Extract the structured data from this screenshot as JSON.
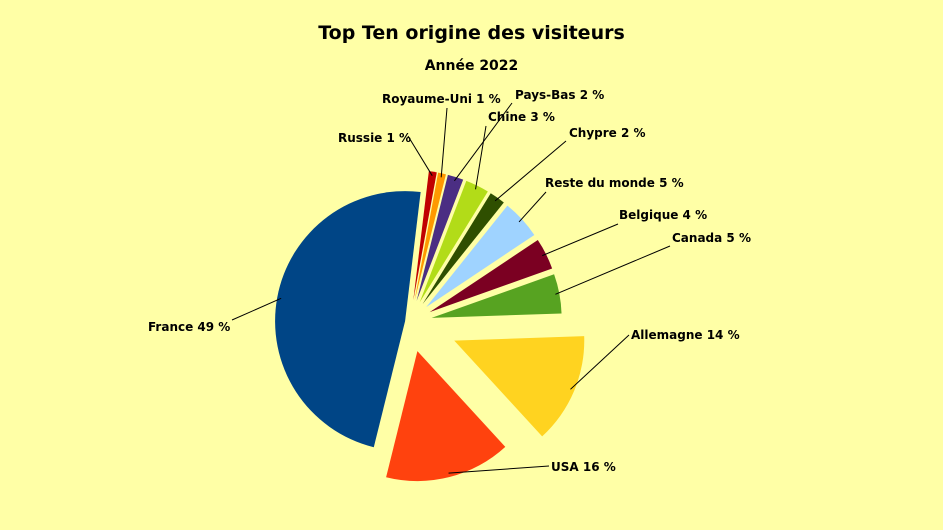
{
  "chart_data": {
    "type": "pie",
    "title": "Top Ten origine des visiteurs",
    "subtitle": "Année 2022",
    "unit": "%",
    "slices": [
      {
        "label": "Russie 1 %",
        "name": "Russie",
        "value": 1,
        "color": "#c00000"
      },
      {
        "label": "Royaume-Uni 1 %",
        "name": "Royaume-Uni",
        "value": 1,
        "color": "#ff9900"
      },
      {
        "label": "Pays-Bas 2 %",
        "name": "Pays-Bas",
        "value": 2,
        "color": "#4b2e83"
      },
      {
        "label": "Chine 3 %",
        "name": "Chine",
        "value": 3,
        "color": "#b2dc18"
      },
      {
        "label": "Chypre 2 %",
        "name": "Chypre",
        "value": 2,
        "color": "#2f4f00"
      },
      {
        "label": "Reste du monde 5 %",
        "name": "Reste du monde",
        "value": 5,
        "color": "#9fd3ff"
      },
      {
        "label": "Belgique 4 %",
        "name": "Belgique",
        "value": 4,
        "color": "#7b0022"
      },
      {
        "label": "Canada 5 %",
        "name": "Canada",
        "value": 5,
        "color": "#57a321"
      },
      {
        "label": "Allemagne 14 %",
        "name": "Allemagne",
        "value": 14,
        "color": "#ffd320"
      },
      {
        "label": "USA 16 %",
        "name": "USA",
        "value": 16,
        "color": "#ff420e"
      },
      {
        "label": "France 49 %",
        "name": "France",
        "value": 49,
        "color": "#004586"
      }
    ]
  }
}
